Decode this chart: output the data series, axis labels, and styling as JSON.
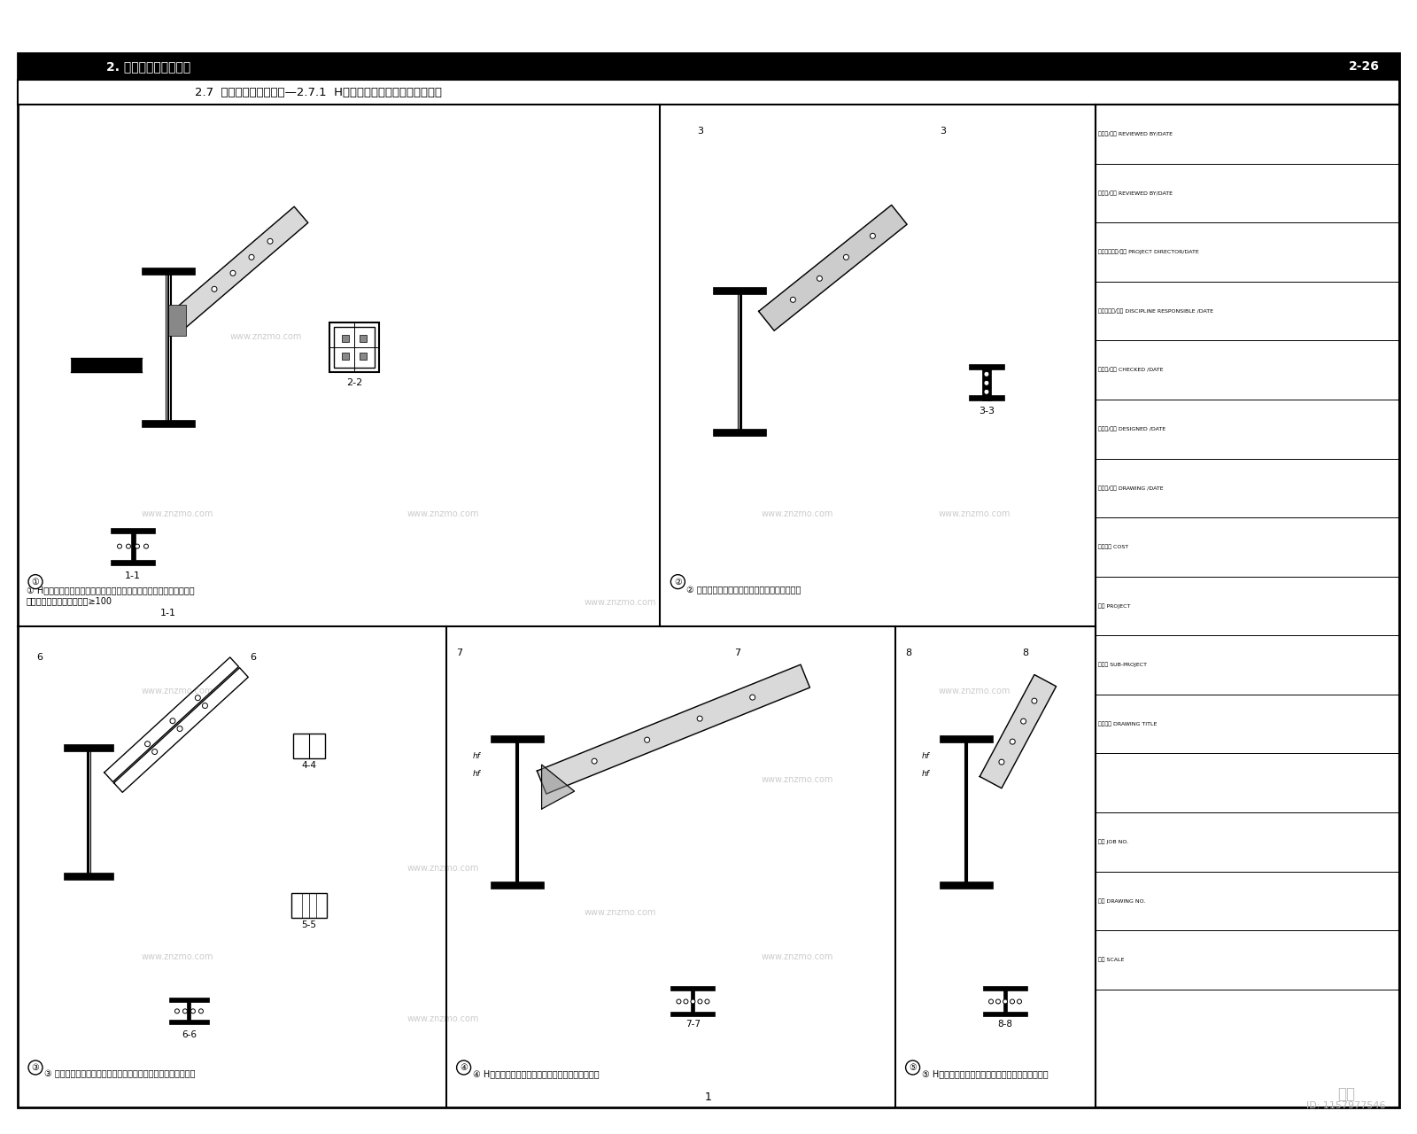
{
  "bg_color": "#ffffff",
  "border_color": "#000000",
  "title_row1": "2. 民用多高层建筑节点",
  "title_row1_right": "2-26",
  "title_row2": "2.7  支撑与梁柱连接部分—2.7.1  H形柱梁与支撑的连接形式（二）",
  "watermark_text": "www.znzmo.com",
  "id_text": "ID: 1157977546",
  "zhimu_text": "知末",
  "panel_labels": [
    "①",
    "②",
    "③",
    "④",
    "⑤"
  ],
  "panel_desc1": "① H型钢支撑顶端垂直于支撑平面与工字形断一型柱结构翼缘端板焊接",
  "panel_desc1b": "顶角平角翻缘焊缝焊脚尺寸≥100",
  "panel_desc2": "② 箱钢钢斜面支撑与工字形断一型柱的翼缘连接",
  "panel_desc3": "③ 双槽钢成及角钢组合截面支撑与工字形断一型柱翼板螺栓连接",
  "panel_desc4": "④ H型钢支撑与工字形断一型柱结构翼板连接（一）",
  "panel_desc5": "⑤ H型钢支撑与工字形断一型柱结构翼板连接（二）",
  "section_labels": [
    "1-1",
    "2-2",
    "3-3",
    "4-4",
    "5-5",
    "6-6",
    "7-7",
    "8-8"
  ],
  "title_bar_color": "#000000",
  "title_bar_text_color": "#ffffff",
  "line_color": "#000000",
  "panel_divider_color": "#000000"
}
